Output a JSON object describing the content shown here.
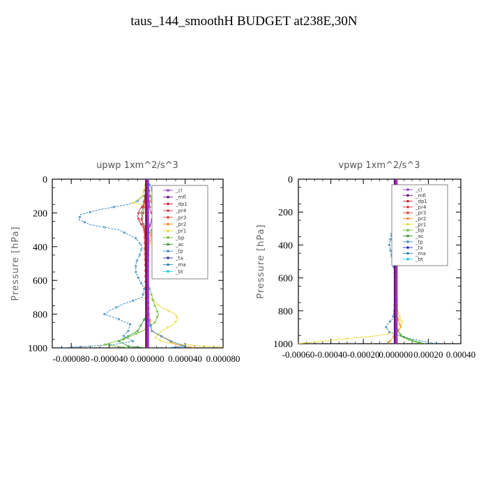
{
  "title": "taus_144_smoothH  BUDGET at238E,30N",
  "legend_entries": [
    "_cl",
    "_mfl",
    "_dp1",
    "_pr4",
    "_pr3",
    "_pr2",
    "_pr1",
    "_bp",
    "_ac",
    "_tp",
    "_ta",
    "_ma",
    "_bt"
  ],
  "colors": {
    "_cl": "#8a2be2",
    "_mfl": "#6a0d80",
    "_dp1": "#d4143c",
    "_pr4": "#e0303f",
    "_pr3": "#e53935",
    "_pr2": "#ff8c1a",
    "_pr1": "#e8d838",
    "_bp": "#6abf2a",
    "_ac": "#2e9b2e",
    "_tp": "#3a8ecf",
    "_ta": "#2b2bb0",
    "_ma": "#2a7fb5",
    "_bt": "#18c8e8"
  },
  "chart_data": [
    {
      "type": "line",
      "title": "upwp   1xm^2/s^3",
      "ylabel": "Pressure [hPa]",
      "xlim": [
        -0.0001,
        8e-05
      ],
      "ylim": [
        1000,
        0
      ],
      "xticks": [
        -8e-05,
        -4e-05,
        0.0,
        4e-05,
        8e-05
      ],
      "xtick_labels": [
        "-0.000080",
        "-0.000040",
        "0.000000",
        "0.000040",
        "0.000080"
      ],
      "yticks": [
        0,
        200,
        400,
        600,
        800,
        1000
      ],
      "legend_position": "top-right",
      "series": [
        {
          "name": "_ma",
          "pressure": [
            0,
            100,
            130,
            150,
            180,
            210,
            240,
            270,
            300,
            350,
            400,
            450,
            500,
            550,
            600,
            650,
            700,
            740,
            780,
            800,
            830,
            860,
            900,
            930,
            960,
            980,
            1000
          ],
          "values": [
            0.0,
            -5e-06,
            -1e-05,
            -2e-05,
            -5e-05,
            -7e-05,
            -7.2e-05,
            -6e-05,
            -3e-05,
            -1.2e-05,
            -5e-06,
            -8e-06,
            -1.2e-05,
            -1.2e-05,
            -8e-06,
            -3e-06,
            -5e-06,
            -2.5e-05,
            -4e-05,
            -4.5e-05,
            -3e-05,
            -1.8e-05,
            -2e-05,
            -2.5e-05,
            -1.5e-05,
            -3.5e-05,
            -9e-05
          ]
        },
        {
          "name": "_pr1",
          "pressure": [
            0,
            100,
            140,
            160,
            200,
            230,
            250,
            300,
            350,
            400,
            500,
            600,
            700,
            760,
            800,
            830,
            860,
            900,
            940,
            970,
            990,
            1000
          ],
          "values": [
            0.0,
            -5e-06,
            -1.5e-05,
            0.0,
            2.5e-05,
            3e-05,
            2.5e-05,
            1.2e-05,
            5e-06,
            2e-06,
            1e-06,
            0.0,
            2e-06,
            1.5e-05,
            3e-05,
            3.2e-05,
            2.8e-05,
            1.5e-05,
            8e-06,
            2e-05,
            6e-05,
            0.0001
          ]
        },
        {
          "name": "_pr2",
          "pressure": [
            0,
            150,
            200,
            230,
            260,
            300,
            400,
            600,
            800,
            900,
            980,
            1000
          ],
          "values": [
            0.0,
            5e-06,
            1.5e-05,
            1.8e-05,
            1.2e-05,
            5e-06,
            1e-06,
            0.0,
            2e-06,
            5e-06,
            3e-05,
            5e-05
          ]
        },
        {
          "name": "_bp",
          "pressure": [
            0,
            120,
            150,
            180,
            210,
            240,
            270,
            300,
            350,
            400,
            600,
            750,
            800,
            850,
            900,
            950,
            980,
            1000
          ],
          "values": [
            0.0,
            4e-06,
            1.5e-05,
            2.8e-05,
            3.2e-05,
            2.5e-05,
            1.2e-05,
            4e-06,
            0.0,
            -2e-06,
            0.0,
            8e-06,
            1.2e-05,
            8e-06,
            -5e-06,
            -2.5e-05,
            -4.5e-05,
            -2e-05
          ]
        },
        {
          "name": "_ac",
          "pressure": [
            0,
            150,
            200,
            250,
            300,
            400,
            600,
            800,
            900,
            960,
            990,
            1000
          ],
          "values": [
            0.0,
            -4e-06,
            -6e-06,
            -5e-06,
            -2e-06,
            0.0,
            0.0,
            0.0,
            -1e-05,
            -3e-05,
            -2e-05,
            0.0
          ]
        },
        {
          "name": "_tp",
          "pressure": [
            0,
            100,
            140,
            170,
            200,
            240,
            300,
            400,
            600,
            800,
            900,
            960,
            990,
            1000
          ],
          "values": [
            0.0,
            8e-06,
            4.5e-05,
            2.5e-05,
            1.2e-05,
            5e-06,
            1e-06,
            0.0,
            0.0,
            0.0,
            5e-06,
            2.5e-05,
            4e-05,
            2e-05
          ]
        },
        {
          "name": "_dp1",
          "pressure": [
            0,
            150,
            180,
            220,
            250,
            300,
            400,
            600,
            800,
            1000
          ],
          "values": [
            0.0,
            -3e-06,
            -8e-06,
            -1e-05,
            -8e-06,
            -3e-06,
            0.0,
            0.0,
            0.0,
            0.0
          ]
        },
        {
          "name": "_pr4",
          "pressure": [
            0,
            180,
            220,
            260,
            300,
            1000
          ],
          "values": [
            0.0,
            3e-06,
            6e-06,
            4e-06,
            1e-06,
            0.0
          ]
        },
        {
          "name": "_pr3",
          "pressure": [
            0,
            200,
            240,
            280,
            1000
          ],
          "values": [
            0.0,
            -4e-06,
            -6e-06,
            -3e-06,
            0.0
          ]
        },
        {
          "name": "_ta",
          "pressure": [
            0,
            1000
          ],
          "values": [
            0.0,
            0.0
          ]
        },
        {
          "name": "_cl",
          "pressure": [
            0,
            1000
          ],
          "values": [
            0.0,
            0.0
          ]
        },
        {
          "name": "_mfl",
          "pressure": [
            0,
            1000
          ],
          "values": [
            0.0,
            0.0
          ]
        },
        {
          "name": "_bt",
          "pressure": [
            0,
            1000
          ],
          "values": [
            0.0,
            0.0
          ]
        }
      ]
    },
    {
      "type": "line",
      "title": "vpwp   1xm^2/s^3",
      "ylabel": "Pressure [hPa]",
      "xlim": [
        -0.0006,
        0.0004
      ],
      "ylim": [
        1000,
        0
      ],
      "xticks": [
        -0.0006,
        -0.0004,
        -0.0002,
        0.0,
        0.0002,
        0.0004
      ],
      "xtick_labels": [
        "-0.00060",
        "-0.00040",
        "-0.00020",
        "0.000000",
        "0.00020",
        "0.00040"
      ],
      "yticks": [
        0,
        200,
        400,
        600,
        800,
        1000
      ],
      "legend_position": "top-right",
      "series": [
        {
          "name": "_ma",
          "pressure": [
            0,
            150,
            250,
            350,
            400,
            450,
            500,
            550,
            600,
            700,
            800,
            850,
            880,
            900,
            930,
            960,
            980,
            1000
          ],
          "values": [
            0.0,
            1e-05,
            -1e-05,
            -3e-05,
            -4e-05,
            -3e-05,
            -2e-05,
            -1e-05,
            0.0,
            0.0,
            -1e-05,
            -2e-05,
            -5e-05,
            -6e-05,
            -4e-05,
            5e-05,
            0.00014,
            0.00025
          ]
        },
        {
          "name": "_pr1",
          "pressure": [
            0,
            400,
            600,
            800,
            850,
            880,
            900,
            930,
            950,
            970,
            990,
            1000
          ],
          "values": [
            0.0,
            0.0,
            0.0,
            1e-05,
            3e-05,
            4e-05,
            3e-05,
            0.0,
            -0.0001,
            -0.0003,
            -0.0005,
            -0.0006
          ]
        },
        {
          "name": "_pr2",
          "pressure": [
            0,
            800,
            870,
            900,
            940,
            1000
          ],
          "values": [
            0.0,
            0.0,
            2e-05,
            3e-05,
            0.0,
            -5e-05
          ]
        },
        {
          "name": "_ac",
          "pressure": [
            0,
            900,
            950,
            980,
            1000
          ],
          "values": [
            0.0,
            0.0,
            3e-05,
            0.0001,
            0.00018
          ]
        },
        {
          "name": "_bp",
          "pressure": [
            0,
            900,
            960,
            990,
            1000
          ],
          "values": [
            0.0,
            0.0,
            4e-05,
            0.00012,
            0.00016
          ]
        },
        {
          "name": "_tp",
          "pressure": [
            0,
            140,
            160,
            200,
            1000
          ],
          "values": [
            0.0,
            1e-05,
            2e-05,
            0.0,
            0.0
          ]
        },
        {
          "name": "_dp1",
          "pressure": [
            0,
            1000
          ],
          "values": [
            0.0,
            0.0
          ]
        },
        {
          "name": "_pr4",
          "pressure": [
            0,
            1000
          ],
          "values": [
            0.0,
            0.0
          ]
        },
        {
          "name": "_pr3",
          "pressure": [
            0,
            1000
          ],
          "values": [
            0.0,
            0.0
          ]
        },
        {
          "name": "_ta",
          "pressure": [
            0,
            1000
          ],
          "values": [
            0.0,
            0.0
          ]
        },
        {
          "name": "_cl",
          "pressure": [
            0,
            1000
          ],
          "values": [
            0.0,
            0.0
          ]
        },
        {
          "name": "_mfl",
          "pressure": [
            0,
            1000
          ],
          "values": [
            0.0,
            0.0
          ]
        },
        {
          "name": "_bt",
          "pressure": [
            0,
            1000
          ],
          "values": [
            0.0,
            0.0
          ]
        }
      ]
    }
  ]
}
